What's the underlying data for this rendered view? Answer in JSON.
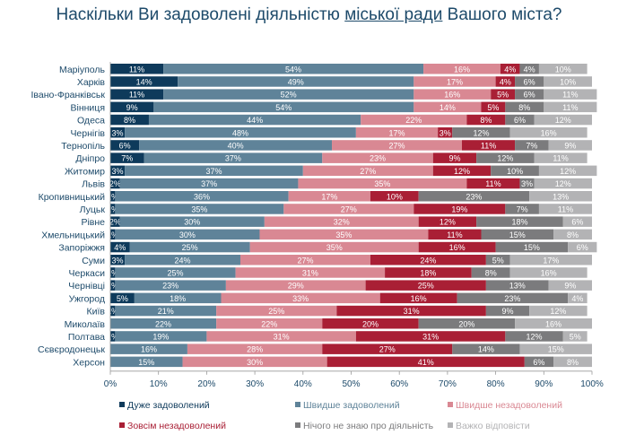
{
  "chart_data": {
    "type": "bar",
    "stacked": true,
    "orientation": "horizontal",
    "title_parts": [
      "Наскільки Ви задоволені діяльністю ",
      "міської ради",
      " Вашого міста?"
    ],
    "categories": [
      "Маріуполь",
      "Харків",
      "Івано-Франківськ",
      "Вінниця",
      "Одеса",
      "Чернігів",
      "Тернопіль",
      "Дніпро",
      "Житомир",
      "Львів",
      "Кропивницький",
      "Луцьк",
      "Рівне",
      "Хмельницький",
      "Запоріжжя",
      "Суми",
      "Черкаси",
      "Чернівці",
      "Ужгород",
      "Київ",
      "Миколаїв",
      "Полтава",
      "Сєвєродонецьк",
      "Херсон"
    ],
    "series": [
      {
        "name": "Дуже задоволений",
        "color": "#0e3a5b",
        "values": [
          11,
          14,
          11,
          9,
          8,
          3,
          6,
          7,
          3,
          2,
          1,
          1,
          2,
          1,
          4,
          3,
          1,
          1,
          5,
          1,
          0,
          1,
          0,
          0
        ]
      },
      {
        "name": "Швидше задоволений",
        "color": "#5f8399",
        "values": [
          54,
          49,
          52,
          54,
          44,
          48,
          40,
          37,
          37,
          37,
          36,
          35,
          30,
          30,
          25,
          24,
          25,
          23,
          18,
          21,
          22,
          19,
          16,
          15
        ]
      },
      {
        "name": "Швидше незадоволений",
        "color": "#d98893",
        "values": [
          16,
          17,
          16,
          14,
          22,
          17,
          27,
          23,
          27,
          35,
          17,
          27,
          32,
          35,
          35,
          27,
          31,
          29,
          33,
          25,
          22,
          31,
          28,
          30
        ]
      },
      {
        "name": "Зовсім незадоволений",
        "color": "#a91f35",
        "values": [
          4,
          4,
          5,
          5,
          8,
          3,
          11,
          9,
          12,
          11,
          10,
          19,
          12,
          11,
          16,
          24,
          18,
          25,
          16,
          31,
          20,
          31,
          27,
          41
        ]
      },
      {
        "name": "Нічого не знаю про діяльність",
        "color": "#7b7b7d",
        "values": [
          4,
          6,
          6,
          8,
          6,
          12,
          7,
          12,
          10,
          3,
          23,
          7,
          18,
          15,
          15,
          5,
          8,
          13,
          23,
          9,
          20,
          12,
          14,
          6
        ]
      },
      {
        "name": "Важко відповісти",
        "color": "#b3b3b5",
        "values": [
          10,
          10,
          11,
          11,
          12,
          16,
          9,
          11,
          12,
          12,
          13,
          11,
          6,
          8,
          6,
          17,
          16,
          9,
          4,
          12,
          16,
          5,
          15,
          8
        ]
      }
    ],
    "xticks": [
      "0%",
      "10%",
      "20%",
      "30%",
      "40%",
      "50%",
      "60%",
      "70%",
      "80%",
      "90%",
      "100%"
    ],
    "xlim": [
      0,
      100
    ],
    "legend_position": "bottom"
  }
}
